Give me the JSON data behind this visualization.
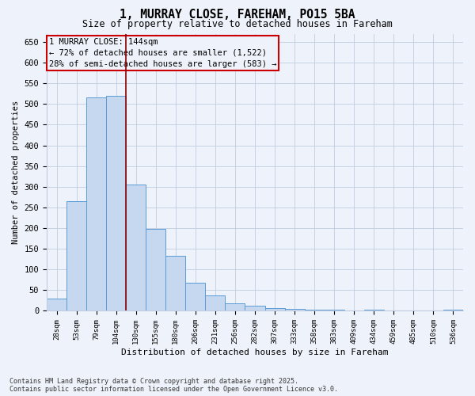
{
  "title1": "1, MURRAY CLOSE, FAREHAM, PO15 5BA",
  "title2": "Size of property relative to detached houses in Fareham",
  "xlabel": "Distribution of detached houses by size in Fareham",
  "ylabel": "Number of detached properties",
  "categories": [
    "28sqm",
    "53sqm",
    "79sqm",
    "104sqm",
    "130sqm",
    "155sqm",
    "180sqm",
    "206sqm",
    "231sqm",
    "256sqm",
    "282sqm",
    "307sqm",
    "333sqm",
    "358sqm",
    "383sqm",
    "409sqm",
    "434sqm",
    "459sqm",
    "485sqm",
    "510sqm",
    "536sqm"
  ],
  "values": [
    30,
    265,
    515,
    520,
    305,
    198,
    133,
    67,
    38,
    18,
    13,
    7,
    5,
    3,
    2,
    0,
    2,
    0,
    0,
    0,
    3
  ],
  "bar_color": "#c5d8f0",
  "bar_edge_color": "#5b9bd5",
  "vline_color": "#8b0000",
  "annotation_line1": "1 MURRAY CLOSE: 144sqm",
  "annotation_line2": "← 72% of detached houses are smaller (1,522)",
  "annotation_line3": "28% of semi-detached houses are larger (583) →",
  "annotation_box_color": "#cc0000",
  "ylim": [
    0,
    670
  ],
  "yticks": [
    0,
    50,
    100,
    150,
    200,
    250,
    300,
    350,
    400,
    450,
    500,
    550,
    600,
    650
  ],
  "footer1": "Contains HM Land Registry data © Crown copyright and database right 2025.",
  "footer2": "Contains public sector information licensed under the Open Government Licence v3.0.",
  "bg_color": "#eef2fa",
  "grid_color": "#c0ccdf"
}
